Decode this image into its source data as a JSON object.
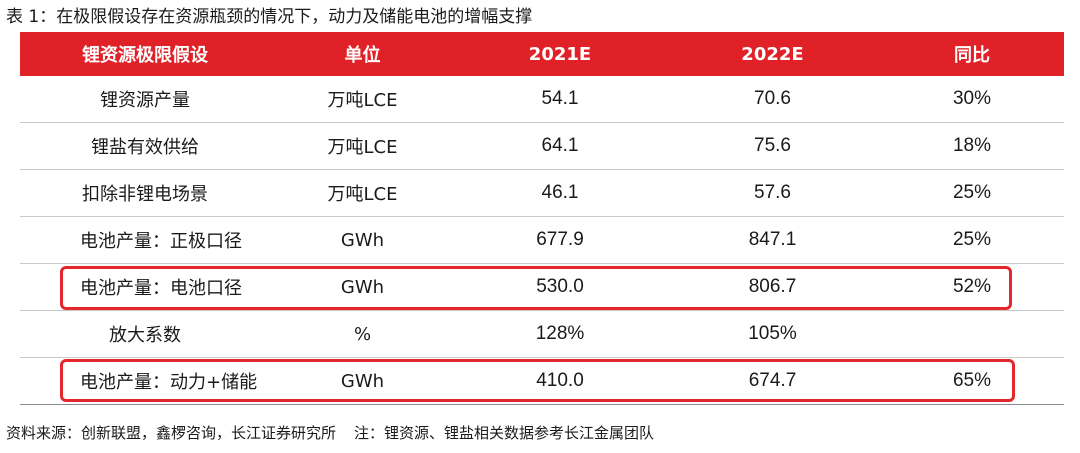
{
  "caption": "表 1：在极限假设存在资源瓶颈的情况下，动力及储能电池的增幅支撑",
  "headers": [
    "锂资源极限假设",
    "单位",
    "2021E",
    "2022E",
    "同比"
  ],
  "rows": [
    [
      "锂资源产量",
      "万吨LCE",
      "54.1",
      "70.6",
      "30%"
    ],
    [
      "锂盐有效供给",
      "万吨LCE",
      "64.1",
      "75.6",
      "18%"
    ],
    [
      "扣除非锂电场景",
      "万吨LCE",
      "46.1",
      "57.6",
      "25%"
    ],
    [
      "电池产量：正极口径",
      "GWh",
      "677.9",
      "847.1",
      "25%"
    ],
    [
      "电池产量：电池口径",
      "GWh",
      "530.0",
      "806.7",
      "52%"
    ],
    [
      "放大系数",
      "%",
      "128%",
      "105%",
      ""
    ],
    [
      "电池产量：动力+储能",
      "GWh",
      "410.0",
      "674.7",
      "65%"
    ]
  ],
  "source": "资料来源：创新联盟，鑫椤咨询，长江证券研究所",
  "note": "注：锂资源、锂盐相关数据参考长江金属团队",
  "colors": {
    "header_bg": "#e02127",
    "highlight": "#e4272c"
  }
}
